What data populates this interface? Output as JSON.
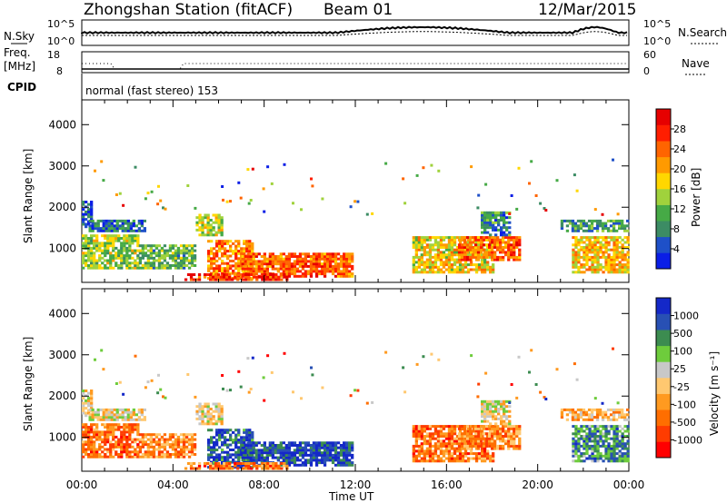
{
  "header": {
    "station": "Zhongshan Station (fitACF)",
    "beam": "Beam 01",
    "date": "12/Mar/2015"
  },
  "status_panel": {
    "nsky_label": "N.Sky",
    "nsky_ticks": [
      "10^5",
      "10^0"
    ],
    "nsearch_label": "N.Search",
    "nsearch_ticks": [
      "10^5",
      "10^0"
    ],
    "freq_label_1": "Freq.",
    "freq_label_2": "[MHz]",
    "freq_ticks": [
      "18",
      "8"
    ],
    "nave_label": "Nave",
    "nave_ticks": [
      "60",
      "0"
    ],
    "cpid_label": "CPID",
    "cpid_text": "normal (fast stereo) 153"
  },
  "colors": {
    "power_scale": [
      "#0a1ee6",
      "#1e50c8",
      "#3c8c64",
      "#46aa46",
      "#a0d23c",
      "#ffd700",
      "#ff9a00",
      "#ff6400",
      "#ff1e00",
      "#e60000"
    ],
    "velocity_scale": [
      "#ff0000",
      "#ff3c00",
      "#ff6e00",
      "#ff9a20",
      "#ffc870",
      "#c8c8c8",
      "#6ecc3c",
      "#3c8c50",
      "#2850b4",
      "#1428c8"
    ]
  },
  "chart_data": [
    {
      "type": "heatmap",
      "quantity": "Power",
      "ylabel": "Slant Range [km]",
      "ylim": [
        180,
        4600
      ],
      "yticks": [
        1000,
        2000,
        3000,
        4000
      ],
      "xlim": [
        0,
        24
      ],
      "xticks": [
        "00:00",
        "04:00",
        "08:00",
        "12:00",
        "16:00",
        "20:00",
        "00:00"
      ],
      "colorbar_label": "Power [dB]",
      "colorbar_ticks": [
        4,
        8,
        12,
        16,
        20,
        24,
        28
      ],
      "colorbar_range": [
        0,
        30
      ],
      "regions": [
        {
          "t0": 0.0,
          "t1": 2.5,
          "r0": 500,
          "r1": 1300,
          "level": 0.45
        },
        {
          "t0": 0.0,
          "t1": 0.4,
          "r0": 1500,
          "r1": 2150,
          "level": 0.15
        },
        {
          "t0": 0.3,
          "t1": 2.8,
          "r0": 1400,
          "r1": 1700,
          "level": 0.2
        },
        {
          "t0": 2.5,
          "t1": 5.0,
          "r0": 500,
          "r1": 1100,
          "level": 0.35
        },
        {
          "t0": 5.0,
          "t1": 6.2,
          "r0": 1300,
          "r1": 1800,
          "level": 0.5
        },
        {
          "t0": 5.5,
          "t1": 7.5,
          "r0": 250,
          "r1": 1200,
          "level": 0.7
        },
        {
          "t0": 7.0,
          "t1": 11.8,
          "r0": 300,
          "r1": 900,
          "level": 0.75
        },
        {
          "t0": 4.5,
          "t1": 9.0,
          "r0": 220,
          "r1": 400,
          "level": 0.85
        },
        {
          "t0": 14.5,
          "t1": 18.0,
          "r0": 400,
          "r1": 1300,
          "level": 0.55
        },
        {
          "t0": 16.5,
          "t1": 19.2,
          "r0": 700,
          "r1": 1300,
          "level": 0.75
        },
        {
          "t0": 17.5,
          "t1": 18.8,
          "r0": 1300,
          "r1": 1900,
          "level": 0.25
        },
        {
          "t0": 21.5,
          "t1": 24.0,
          "r0": 400,
          "r1": 1300,
          "level": 0.6
        },
        {
          "t0": 21.0,
          "t1": 24.0,
          "r0": 1400,
          "r1": 1700,
          "level": 0.3
        }
      ]
    },
    {
      "type": "heatmap",
      "quantity": "Velocity",
      "ylabel": "Slant Range [km]",
      "ylim": [
        180,
        4600
      ],
      "yticks": [
        1000,
        2000,
        3000,
        4000
      ],
      "xlim": [
        0,
        24
      ],
      "xticks": [
        "00:00",
        "04:00",
        "08:00",
        "12:00",
        "16:00",
        "20:00",
        "00:00"
      ],
      "xlabel": "Time UT",
      "colorbar_label": "Velocity [m s⁻¹]",
      "colorbar_ticks": [
        -1000,
        -500,
        -100,
        -25,
        25,
        100,
        500,
        1000
      ],
      "regions": [
        {
          "t0": 0.0,
          "t1": 2.5,
          "r0": 500,
          "r1": 1300,
          "level": 0.25
        },
        {
          "t0": 0.0,
          "t1": 0.4,
          "r0": 1500,
          "r1": 2150,
          "level": 0.5
        },
        {
          "t0": 0.3,
          "t1": 2.8,
          "r0": 1400,
          "r1": 1700,
          "level": 0.5
        },
        {
          "t0": 2.5,
          "t1": 5.0,
          "r0": 500,
          "r1": 1100,
          "level": 0.3
        },
        {
          "t0": 5.0,
          "t1": 6.2,
          "r0": 1300,
          "r1": 1800,
          "level": 0.5
        },
        {
          "t0": 5.5,
          "t1": 7.5,
          "r0": 250,
          "r1": 1200,
          "level": 0.85
        },
        {
          "t0": 7.0,
          "t1": 11.8,
          "r0": 300,
          "r1": 900,
          "level": 0.88
        },
        {
          "t0": 4.5,
          "t1": 9.0,
          "r0": 220,
          "r1": 400,
          "level": 0.25
        },
        {
          "t0": 14.5,
          "t1": 18.0,
          "r0": 400,
          "r1": 1300,
          "level": 0.25
        },
        {
          "t0": 16.5,
          "t1": 19.2,
          "r0": 700,
          "r1": 1300,
          "level": 0.3
        },
        {
          "t0": 17.5,
          "t1": 18.8,
          "r0": 1300,
          "r1": 1900,
          "level": 0.5
        },
        {
          "t0": 21.5,
          "t1": 24.0,
          "r0": 400,
          "r1": 1300,
          "level": 0.75
        },
        {
          "t0": 21.0,
          "t1": 24.0,
          "r0": 1400,
          "r1": 1700,
          "level": 0.4
        }
      ]
    }
  ]
}
